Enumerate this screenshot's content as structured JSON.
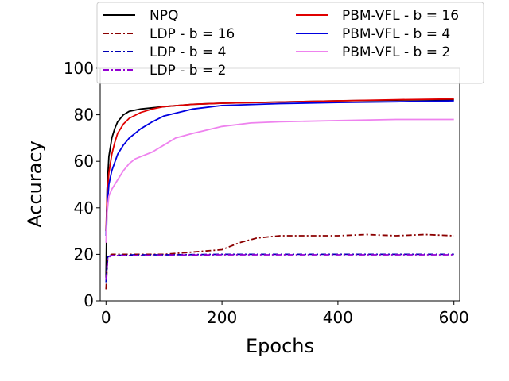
{
  "chart_data": {
    "type": "line",
    "xlabel": "Epochs",
    "ylabel": "Accuracy",
    "xlim": [
      -10,
      610
    ],
    "ylim": [
      0,
      100
    ],
    "xticks": [
      "0",
      "200",
      "400",
      "600"
    ],
    "yticks": [
      "0",
      "20",
      "40",
      "60",
      "80",
      "100"
    ],
    "grid": false,
    "legend_position": "top (outside, two columns)",
    "series": [
      {
        "name": "NPQ",
        "color": "#000000",
        "style": "solid",
        "x": [
          0,
          2,
          5,
          10,
          15,
          20,
          30,
          40,
          60,
          80,
          100,
          150,
          200,
          300,
          400,
          500,
          600
        ],
        "y": [
          10,
          48,
          62,
          70,
          74,
          77,
          80,
          81.5,
          82.5,
          83,
          83.5,
          84.5,
          85,
          85.5,
          86,
          86.3,
          86.5
        ]
      },
      {
        "name": "LDP - b = 16",
        "color": "#8b0000",
        "style": "dashdot",
        "x": [
          0,
          3,
          10,
          50,
          100,
          150,
          200,
          230,
          260,
          300,
          350,
          400,
          450,
          500,
          550,
          600
        ],
        "y": [
          5,
          19,
          20,
          20,
          20,
          21,
          22,
          25,
          27,
          28,
          28,
          28,
          28.5,
          28,
          28.5,
          28
        ]
      },
      {
        "name": "LDP - b = 4",
        "color": "#0000b4",
        "style": "dashdot",
        "x": [
          0,
          3,
          10,
          50,
          100,
          200,
          300,
          400,
          500,
          600
        ],
        "y": [
          8,
          19,
          19.5,
          19.8,
          19.8,
          20,
          20,
          20,
          20,
          20
        ]
      },
      {
        "name": "LDP - b = 2",
        "color": "#9400d3",
        "style": "dashdot",
        "x": [
          0,
          3,
          10,
          50,
          100,
          200,
          300,
          400,
          500,
          600
        ],
        "y": [
          9,
          18.5,
          19.5,
          19.5,
          19.7,
          19.8,
          19.8,
          19.8,
          19.8,
          19.8
        ]
      },
      {
        "name": "PBM-VFL - b = 16",
        "color": "#e00000",
        "style": "solid",
        "x": [
          0,
          2,
          5,
          10,
          15,
          20,
          30,
          40,
          60,
          80,
          100,
          150,
          200,
          300,
          400,
          500,
          600
        ],
        "y": [
          30,
          45,
          55,
          63,
          68,
          72,
          76,
          78.5,
          81,
          82.5,
          83.5,
          84.5,
          85,
          85.5,
          86,
          86.5,
          86.8
        ]
      },
      {
        "name": "PBM-VFL - b = 4",
        "color": "#0000e0",
        "style": "solid",
        "x": [
          0,
          2,
          5,
          10,
          20,
          30,
          40,
          60,
          80,
          100,
          150,
          200,
          300,
          400,
          500,
          600
        ],
        "y": [
          28,
          40,
          50,
          56,
          63,
          67,
          70,
          74,
          77,
          79.5,
          82.5,
          84,
          84.8,
          85.3,
          85.6,
          86
        ]
      },
      {
        "name": "PBM-VFL - b = 2",
        "color": "#ee82ee",
        "style": "solid",
        "x": [
          0,
          2,
          5,
          10,
          20,
          30,
          40,
          50,
          60,
          80,
          100,
          120,
          150,
          200,
          250,
          300,
          400,
          500,
          600
        ],
        "y": [
          25,
          38,
          45,
          48,
          52,
          56,
          59,
          61,
          62,
          64,
          67,
          70,
          72,
          75,
          76.5,
          77,
          77.5,
          78,
          78
        ]
      }
    ]
  }
}
